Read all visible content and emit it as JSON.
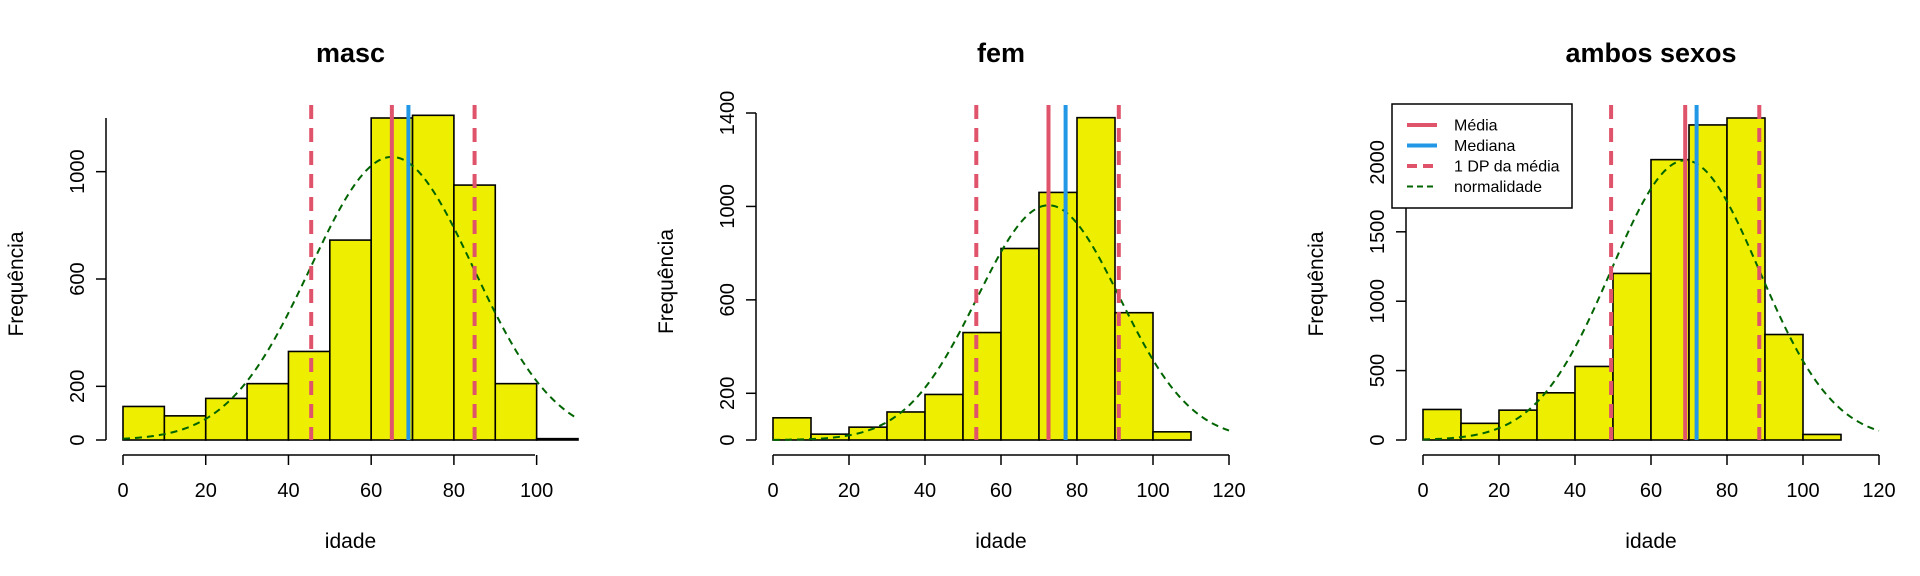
{
  "colors": {
    "bar_fill": "#EEEE00",
    "bar_stroke": "#000000",
    "mean": "#DF536B",
    "median": "#2297E6",
    "sd": "#DF536B",
    "normal": "#006400"
  },
  "legend": {
    "items": [
      {
        "label": "Média",
        "kind": "mean"
      },
      {
        "label": "Mediana",
        "kind": "median"
      },
      {
        "label": "1 DP da média",
        "kind": "sd"
      },
      {
        "label": "normalidade",
        "kind": "normal"
      }
    ]
  },
  "chart_data": [
    {
      "type": "histogram",
      "title": "masc",
      "xlabel": "idade",
      "ylabel": "Frequência",
      "xlim": [
        0,
        110
      ],
      "ylim": [
        0,
        1200
      ],
      "xticks": [
        0,
        20,
        40,
        60,
        80,
        100
      ],
      "yticks": [
        0,
        200,
        600,
        1000
      ],
      "bin_edges": [
        0,
        10,
        20,
        30,
        40,
        50,
        60,
        70,
        80,
        90,
        100,
        110
      ],
      "counts": [
        125,
        90,
        155,
        210,
        330,
        745,
        1200,
        1210,
        950,
        210,
        5
      ],
      "mean": 65,
      "median": 69,
      "sd_lines": [
        45.5,
        85
      ],
      "normal_peak": 1055,
      "legend": false
    },
    {
      "type": "histogram",
      "title": "fem",
      "xlabel": "idade",
      "ylabel": "Frequência",
      "xlim": [
        0,
        120
      ],
      "ylim": [
        0,
        1400
      ],
      "xticks": [
        0,
        20,
        40,
        60,
        80,
        100,
        120
      ],
      "yticks": [
        0,
        200,
        600,
        1000,
        1400
      ],
      "bin_edges": [
        0,
        10,
        20,
        30,
        40,
        50,
        60,
        70,
        80,
        90,
        100,
        110
      ],
      "counts": [
        95,
        25,
        55,
        120,
        195,
        460,
        820,
        1060,
        1380,
        545,
        35
      ],
      "mean": 72.5,
      "median": 77,
      "sd_lines": [
        53.5,
        91
      ],
      "normal_peak": 1005,
      "legend": false
    },
    {
      "type": "histogram",
      "title": "ambos sexos",
      "xlabel": "idade",
      "ylabel": "Frequência",
      "xlim": [
        0,
        120
      ],
      "ylim": [
        0,
        2320
      ],
      "xticks": [
        0,
        20,
        40,
        60,
        80,
        100,
        120
      ],
      "yticks": [
        0,
        500,
        1000,
        1500,
        2000
      ],
      "bin_edges": [
        0,
        10,
        20,
        30,
        40,
        50,
        60,
        70,
        80,
        90,
        100,
        110
      ],
      "counts": [
        220,
        120,
        215,
        340,
        530,
        1200,
        2020,
        2270,
        2320,
        760,
        40
      ],
      "mean": 69,
      "median": 72,
      "sd_lines": [
        49.5,
        88.5
      ],
      "normal_peak": 2015,
      "legend": true
    }
  ]
}
